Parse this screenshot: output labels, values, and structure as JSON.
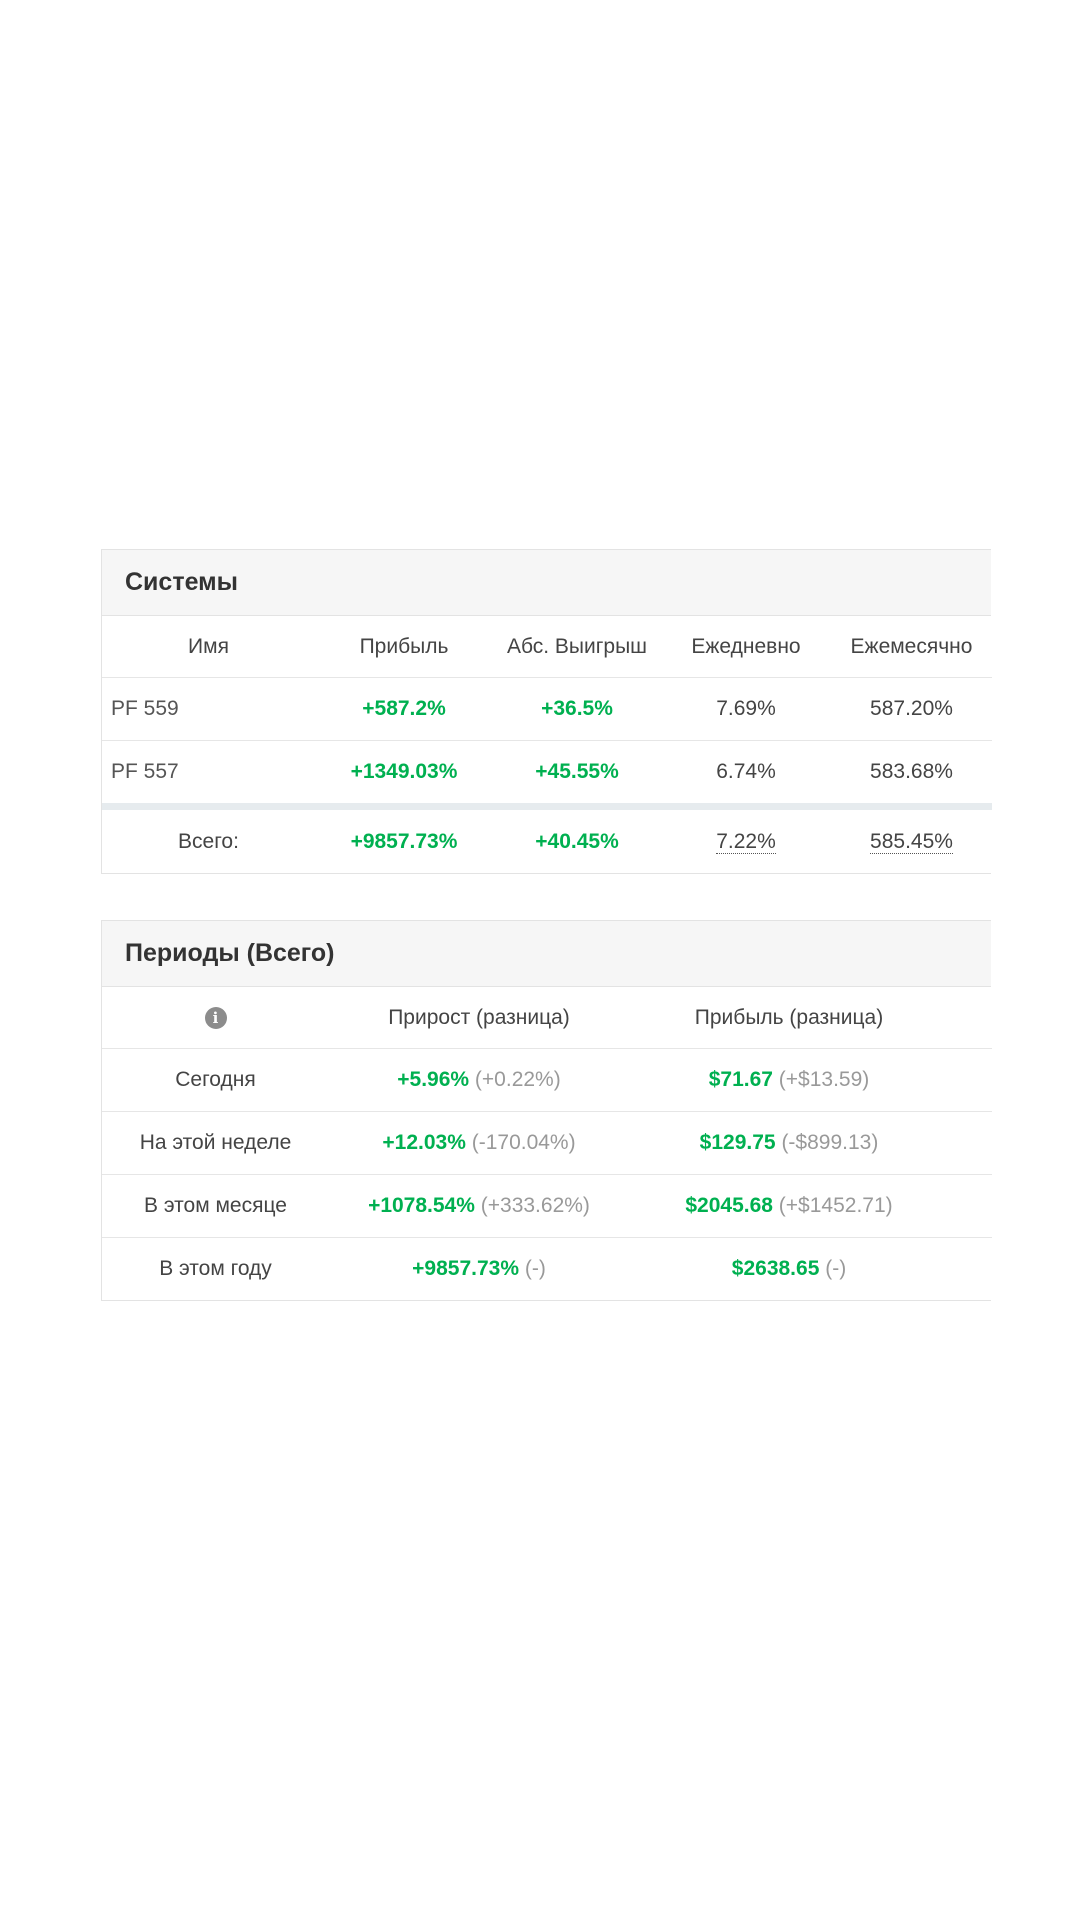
{
  "systems": {
    "title": "Системы",
    "columns": [
      "Имя",
      "Прибыль",
      "Абс. Выигрыш",
      "Ежедневно",
      "Ежемесячно"
    ],
    "rows": [
      {
        "name": "PF 559",
        "profit": "+587.2%",
        "abs_gain": "+36.5%",
        "daily": "7.69%",
        "monthly": "587.20%"
      },
      {
        "name": "PF 557",
        "profit": "+1349.03%",
        "abs_gain": "+45.55%",
        "daily": "6.74%",
        "monthly": "583.68%"
      }
    ],
    "total": {
      "label": "Всего:",
      "profit": "+9857.73%",
      "abs_gain": "+40.45%",
      "daily": "7.22%",
      "monthly": "585.45%"
    }
  },
  "periods": {
    "title": "Периоды (Всего)",
    "info_icon": "info-icon",
    "columns": [
      "Прирост (разница)",
      "Прибыль (разница)"
    ],
    "rows": [
      {
        "label": "Сегодня",
        "growth": "+5.96%",
        "growth_diff": "(+0.22%)",
        "profit": "$71.67",
        "profit_diff": "(+$13.59)"
      },
      {
        "label": "На этой неделе",
        "growth": "+12.03%",
        "growth_diff": "(-170.04%)",
        "profit": "$129.75",
        "profit_diff": "(-$899.13)"
      },
      {
        "label": "В этом месяце",
        "growth": "+1078.54%",
        "growth_diff": "(+333.62%)",
        "profit": "$2045.68",
        "profit_diff": "(+$1452.71)"
      },
      {
        "label": "В этом году",
        "growth": "+9857.73%",
        "growth_diff": "(-)",
        "profit": "$2638.65",
        "profit_diff": "(-)"
      }
    ]
  },
  "colors": {
    "positive": "#00b050",
    "muted": "#999999",
    "header_bg": "#f6f6f6"
  }
}
